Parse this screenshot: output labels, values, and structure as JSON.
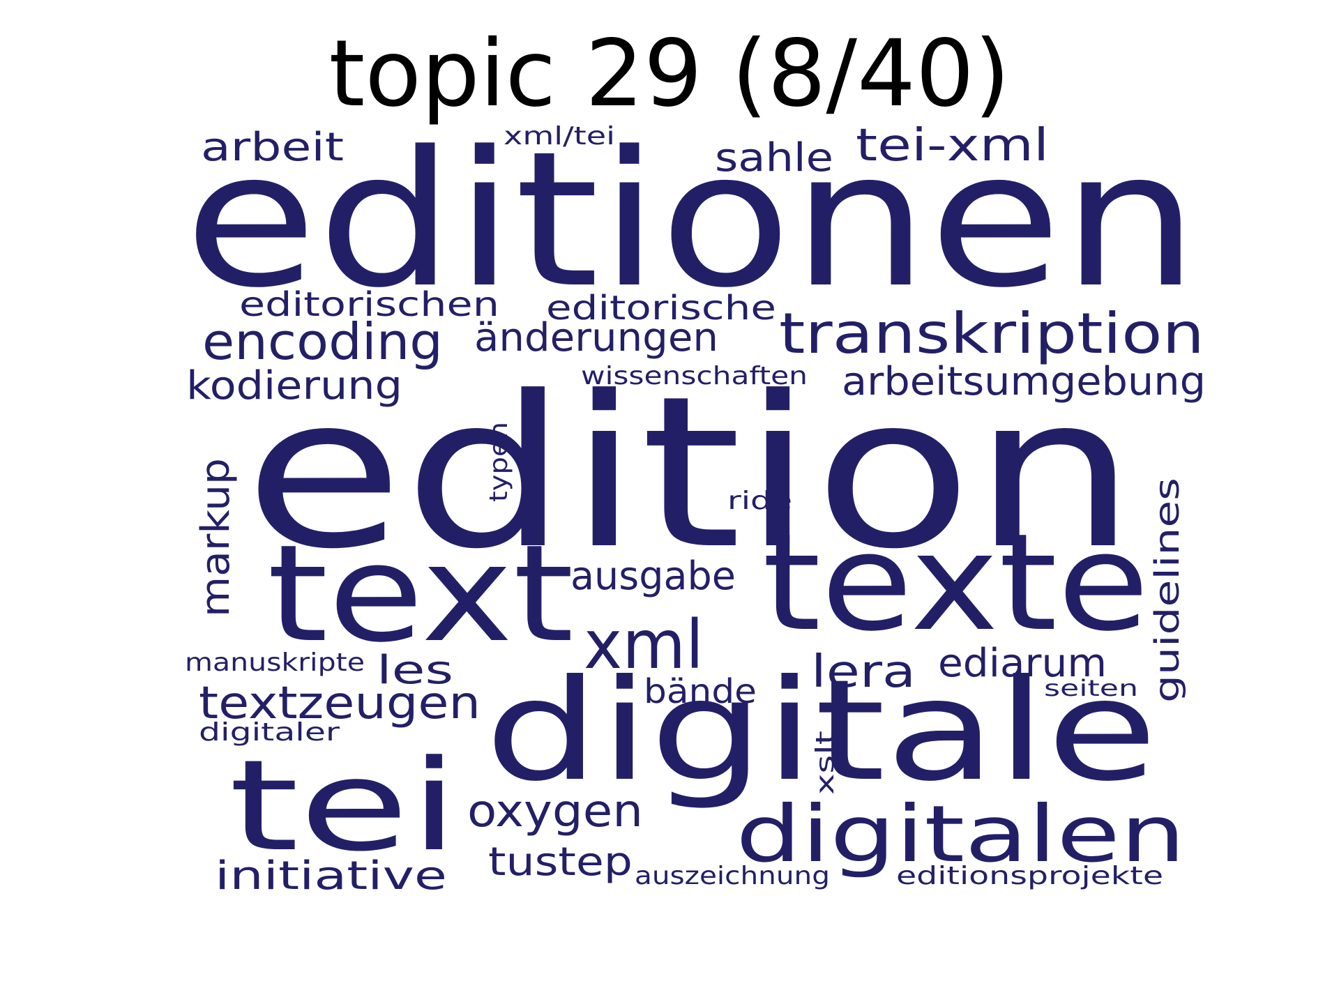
{
  "title": "topic 29 (8/40)",
  "word_color": "#231f67",
  "words": [
    {
      "text": "editionen",
      "rotated": false
    },
    {
      "text": "edition",
      "rotated": false
    },
    {
      "text": "text",
      "rotated": false
    },
    {
      "text": "texte",
      "rotated": false
    },
    {
      "text": "digitale",
      "rotated": false
    },
    {
      "text": "tei",
      "rotated": false
    },
    {
      "text": "digitalen",
      "rotated": false
    },
    {
      "text": "transkription",
      "rotated": false
    },
    {
      "text": "encoding",
      "rotated": false
    },
    {
      "text": "xml",
      "rotated": false
    },
    {
      "text": "tei-xml",
      "rotated": false
    },
    {
      "text": "arbeitsumgebung",
      "rotated": false
    },
    {
      "text": "änderungen",
      "rotated": false
    },
    {
      "text": "kodierung",
      "rotated": false
    },
    {
      "text": "textzeugen",
      "rotated": false
    },
    {
      "text": "markup",
      "rotated": true
    },
    {
      "text": "oxygen",
      "rotated": false
    },
    {
      "text": "editorischen",
      "rotated": false
    },
    {
      "text": "editorische",
      "rotated": false
    },
    {
      "text": "ausgabe",
      "rotated": false
    },
    {
      "text": "lera",
      "rotated": false
    },
    {
      "text": "ediarum",
      "rotated": false
    },
    {
      "text": "initiative",
      "rotated": false
    },
    {
      "text": "tustep",
      "rotated": false
    },
    {
      "text": "arbeit",
      "rotated": false
    },
    {
      "text": "sahle",
      "rotated": false
    },
    {
      "text": "guidelines",
      "rotated": true
    },
    {
      "text": "les",
      "rotated": false
    },
    {
      "text": "bände",
      "rotated": false
    },
    {
      "text": "auszeichnung",
      "rotated": false
    },
    {
      "text": "editionsprojekte",
      "rotated": false
    },
    {
      "text": "wissenschaften",
      "rotated": false
    },
    {
      "text": "manuskripte",
      "rotated": false
    },
    {
      "text": "xml/tei",
      "rotated": false
    },
    {
      "text": "typen",
      "rotated": true
    },
    {
      "text": "xslt",
      "rotated": true
    },
    {
      "text": "ride",
      "rotated": false
    },
    {
      "text": "seiten",
      "rotated": false
    },
    {
      "text": "digitaler",
      "rotated": false
    }
  ]
}
